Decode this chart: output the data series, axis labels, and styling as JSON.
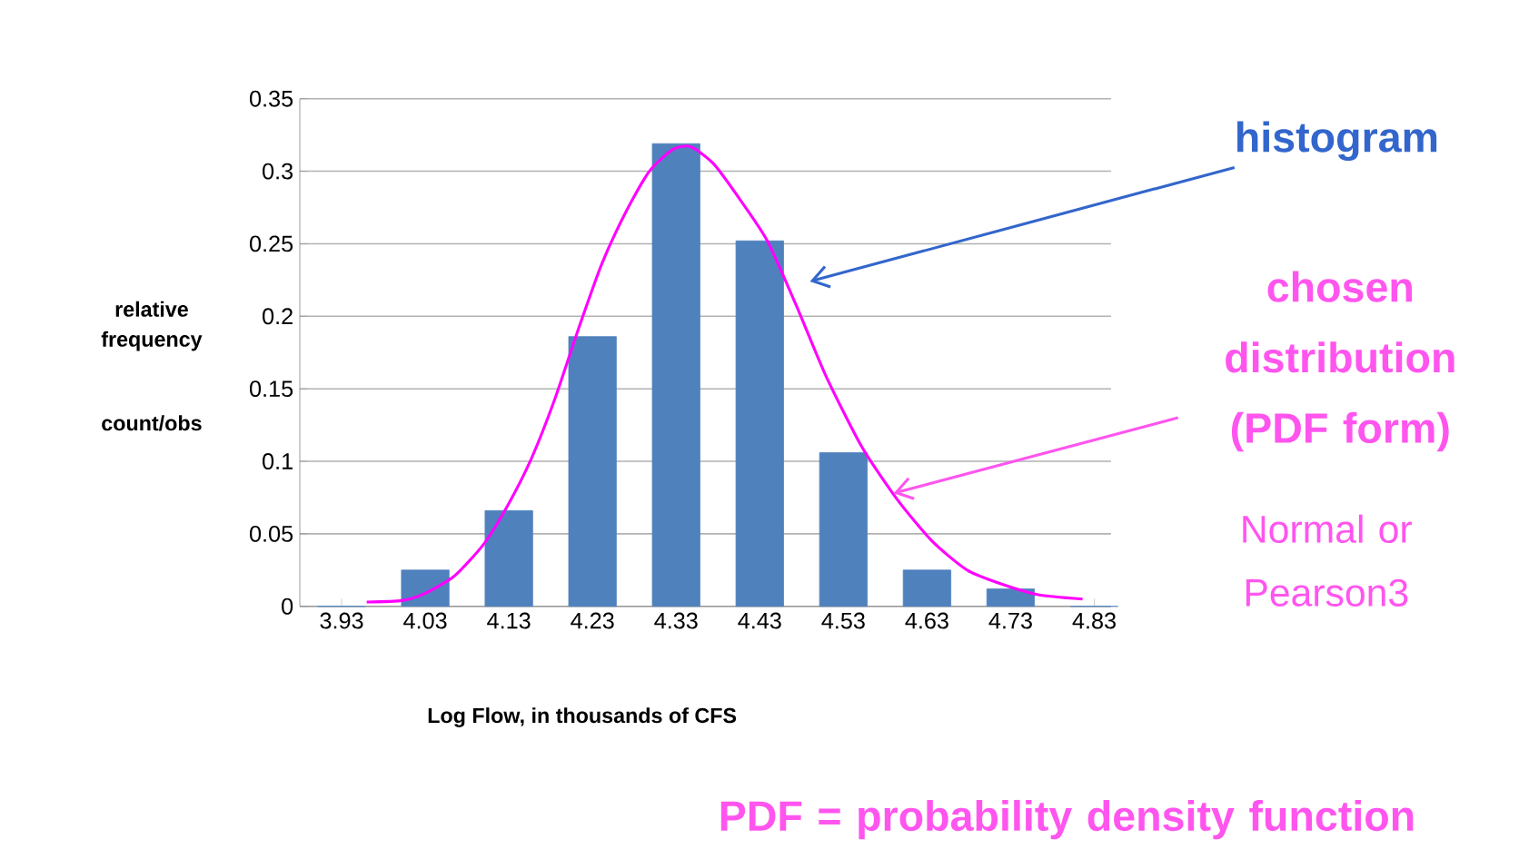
{
  "chart_data": {
    "type": "bar",
    "xlabel": "Log Flow, in thousands of CFS",
    "ylabel": "relative frequency",
    "xlim": [
      3.88,
      4.85
    ],
    "ylim": [
      0,
      0.35
    ],
    "xticks": [
      3.93,
      4.03,
      4.13,
      4.23,
      4.33,
      4.43,
      4.53,
      4.63,
      4.73,
      4.83
    ],
    "yticks": [
      0,
      0.05,
      0.1,
      0.15,
      0.2,
      0.25,
      0.3,
      0.35
    ],
    "grid": "y",
    "series": [
      {
        "color": "#4f81bd",
        "x": [
          3.93,
          4.03,
          4.13,
          4.23,
          4.33,
          4.43,
          4.53,
          4.63,
          4.73,
          4.83
        ],
        "values": [
          0,
          0.025,
          0.066,
          0.186,
          0.319,
          0.252,
          0.106,
          0.025,
          0.012,
          0
        ]
      },
      {
        "type": "line",
        "color": "#ff00ff",
        "x": [
          3.96,
          4.002,
          4.03,
          4.065,
          4.1,
          4.129,
          4.157,
          4.185,
          4.213,
          4.241,
          4.27,
          4.298,
          4.326,
          4.347,
          4.375,
          4.407,
          4.439,
          4.474,
          4.509,
          4.552,
          4.594,
          4.636,
          4.678,
          4.721,
          4.763,
          4.816
        ],
        "values": [
          0.003,
          0.004,
          0.009,
          0.021,
          0.043,
          0.07,
          0.102,
          0.143,
          0.191,
          0.236,
          0.272,
          0.3,
          0.315,
          0.317,
          0.305,
          0.28,
          0.252,
          0.207,
          0.159,
          0.11,
          0.074,
          0.045,
          0.025,
          0.015,
          0.008,
          0.005
        ]
      }
    ],
    "annotations": [
      "histogram",
      {
        "text": "chosen distribution (PDF form)",
        "x": 4.59,
        "y": 0.078
      },
      "Normal or Pearson3",
      "count/obs",
      "PDF = probability density function"
    ]
  }
}
